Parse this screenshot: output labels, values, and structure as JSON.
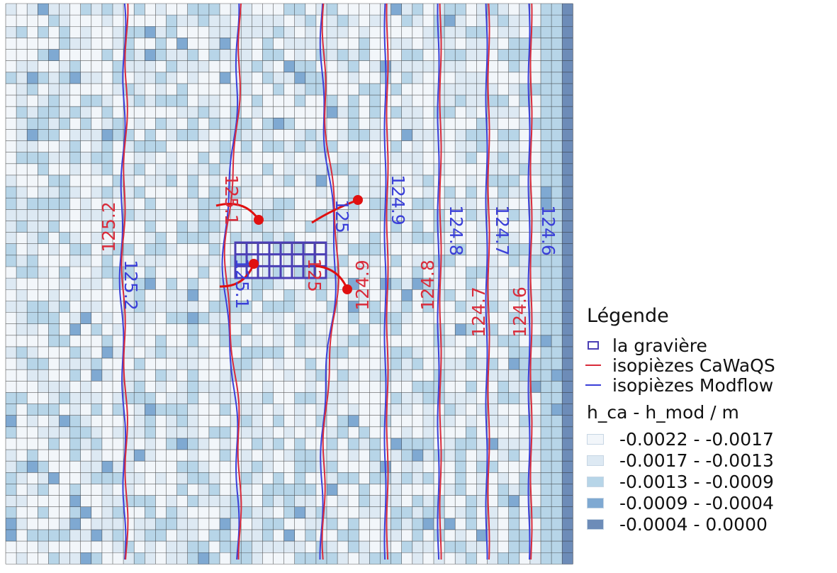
{
  "map": {
    "class_colors": [
      "#f2f6fa",
      "#dde9f3",
      "#b7d5e8",
      "#7fa9d2",
      "#6d8cb8"
    ],
    "grid_line_color": "#2a2a2a",
    "caWaQS_color": "#d92b3a",
    "modflow_color": "#3a3fd8",
    "arrow_color": "#e01010",
    "gravel_pit_color": "#4b3fb5"
  },
  "labels_cawaqs": [
    "125.2",
    "125.1",
    "125",
    "124.9",
    "124.8",
    "124.7",
    "124.6"
  ],
  "labels_modflow": [
    "125.2",
    "125.1",
    "125",
    "124.9",
    "124.8",
    "124.7",
    "124.6"
  ],
  "legend": {
    "title": "Légende",
    "items": [
      {
        "label": "la gravière",
        "symbol": "box",
        "color": "#4b3fb5"
      },
      {
        "label": "isopièzes CaWaQS",
        "symbol": "line",
        "color": "#d92b3a"
      },
      {
        "label": "isopièzes Modflow",
        "symbol": "line",
        "color": "#3a3fd8"
      }
    ],
    "ramp_title": "h_ca - h_mod / m",
    "ramp": [
      {
        "label": "-0.0022 - -0.0017",
        "color": "#f2f6fa"
      },
      {
        "label": "-0.0017 - -0.0013",
        "color": "#dde9f3"
      },
      {
        "label": "-0.0013 - -0.0009",
        "color": "#b7d5e8"
      },
      {
        "label": "-0.0009 - -0.0004",
        "color": "#7fa9d2"
      },
      {
        "label": "-0.0004 - 0.0000",
        "color": "#6d8cb8"
      }
    ]
  }
}
